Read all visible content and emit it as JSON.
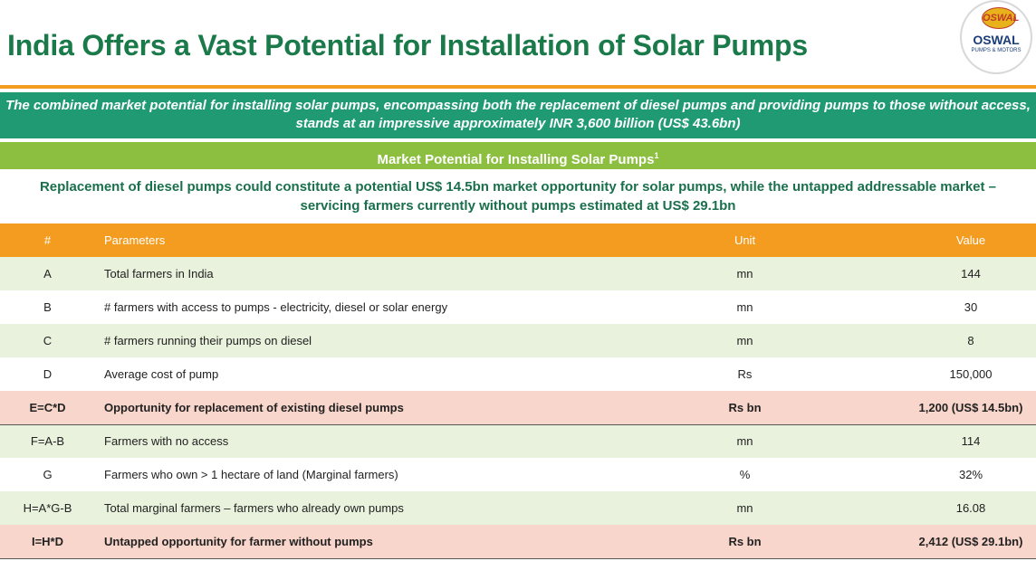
{
  "title": "India Offers a Vast Potential for Installation of Solar Pumps",
  "logo": {
    "badge": "OSWAL",
    "brand": "OSWAL",
    "sub": "PUMPS & MOTORS"
  },
  "banner": {
    "line1": "The combined market potential for installing solar pumps, encompassing both the replacement of diesel pumps and providing pumps to those without access,",
    "line2": "stands at an impressive approximately INR 3,600 billion (US$ 43.6bn)"
  },
  "subbar": {
    "label": "Market Potential for Installing Solar Pumps",
    "footnote": "1"
  },
  "description": {
    "line1": "Replacement of diesel pumps could constitute a potential US$ 14.5bn market opportunity for solar pumps, while the untapped addressable  market –",
    "line2": "servicing farmers currently without pumps estimated at US$ 29.1bn"
  },
  "table": {
    "headers": [
      "#",
      "Parameters",
      "Unit",
      "Value"
    ],
    "rows": [
      {
        "num": "A",
        "param": "Total farmers in India",
        "unit": "mn",
        "value": "144"
      },
      {
        "num": "B",
        "param": "# farmers with access to pumps - electricity, diesel or solar energy",
        "unit": "mn",
        "value": "30"
      },
      {
        "num": "C",
        "param": "# farmers running their pumps on diesel",
        "unit": "mn",
        "value": "8"
      },
      {
        "num": "D",
        "param": "Average cost of pump",
        "unit": "Rs",
        "value": "150,000"
      },
      {
        "num": "E=C*D",
        "param": "Opportunity for replacement of existing diesel pumps",
        "unit": "Rs bn",
        "value": "1,200 (US$ 14.5bn)"
      },
      {
        "num": "F=A-B",
        "param": "Farmers with no access",
        "unit": "mn",
        "value": "114"
      },
      {
        "num": "G",
        "param": "Farmers who own > 1 hectare of land (Marginal farmers)",
        "unit": "%",
        "value": "32%"
      },
      {
        "num": "H=A*G-B",
        "param": "Total  marginal farmers – farmers who already own pumps",
        "unit": "mn",
        "value": "16.08"
      },
      {
        "num": "I=H*D",
        "param": "Untapped opportunity for farmer without pumps",
        "unit": "Rs bn",
        "value": "2,412 (US$ 29.1bn)"
      }
    ]
  },
  "colors": {
    "title_green": "#1a7a4a",
    "banner_green": "#1f9a72",
    "subbar_green": "#8cbf3f",
    "header_orange": "#f39c1f",
    "row_green": "#e8f2dc",
    "row_pink": "#f9d6cb"
  }
}
